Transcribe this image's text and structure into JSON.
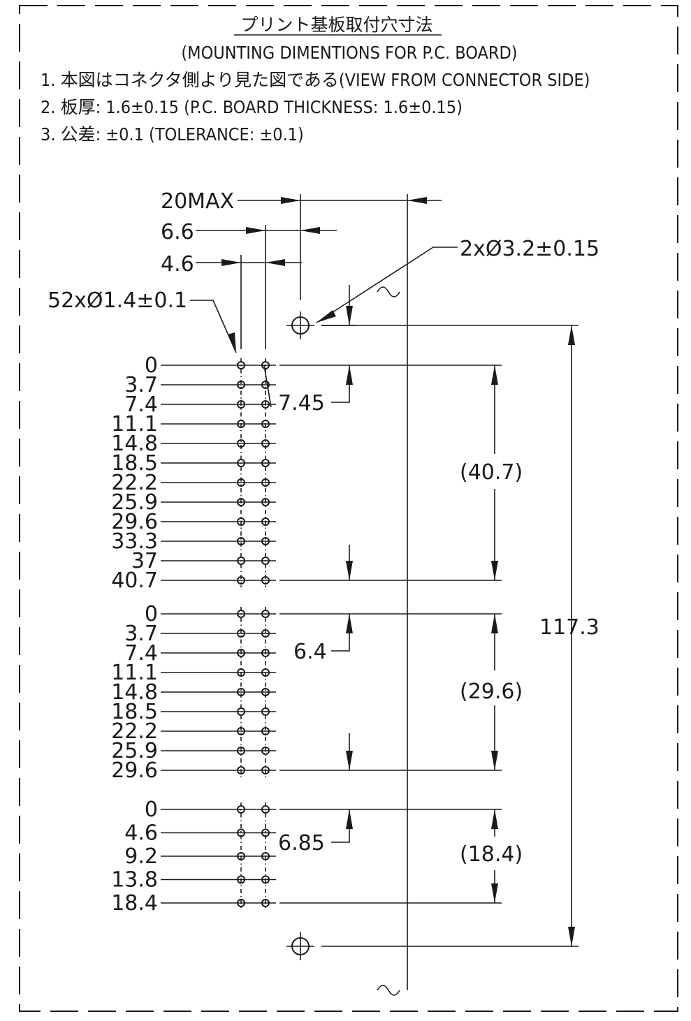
{
  "title": "プリント基板取付穴寸法",
  "subtitle": "(MOUNTING DIMENTIONS FOR P.C. BOARD)",
  "notes": [
    "1. 本図はコネクタ側より見た図である(VIEW FROM CONNECTOR SIDE)",
    "2. 板厚: 1.6±0.15 (P.C. BOARD THICKNESS: 1.6±0.15)",
    "3. 公差: ±0.1 (TOLERANCE: ±0.1)"
  ],
  "dimensions": {
    "max_width": "20MAX",
    "pitch_a": "6.6",
    "pitch_b": "4.6",
    "mount_hole": "2xØ3.2±0.15",
    "pin_hole": "52xØ1.4±0.1",
    "offset_1": "7.45",
    "offset_2": "6.4",
    "offset_3": "6.85",
    "span_1": "(40.7)",
    "span_2": "(29.6)",
    "span_3": "(18.4)",
    "overall": "117.3"
  },
  "pin_groups": [
    {
      "labels": [
        "0",
        "3.7",
        "7.4",
        "11.1",
        "14.8",
        "18.5",
        "22.2",
        "25.9",
        "29.6",
        "33.3",
        "37",
        "40.7"
      ]
    },
    {
      "labels": [
        "0",
        "3.7",
        "7.4",
        "11.1",
        "14.8",
        "18.5",
        "22.2",
        "25.9",
        "29.6"
      ]
    },
    {
      "labels": [
        "0",
        "4.6",
        "9.2",
        "13.8",
        "18.4"
      ]
    }
  ]
}
